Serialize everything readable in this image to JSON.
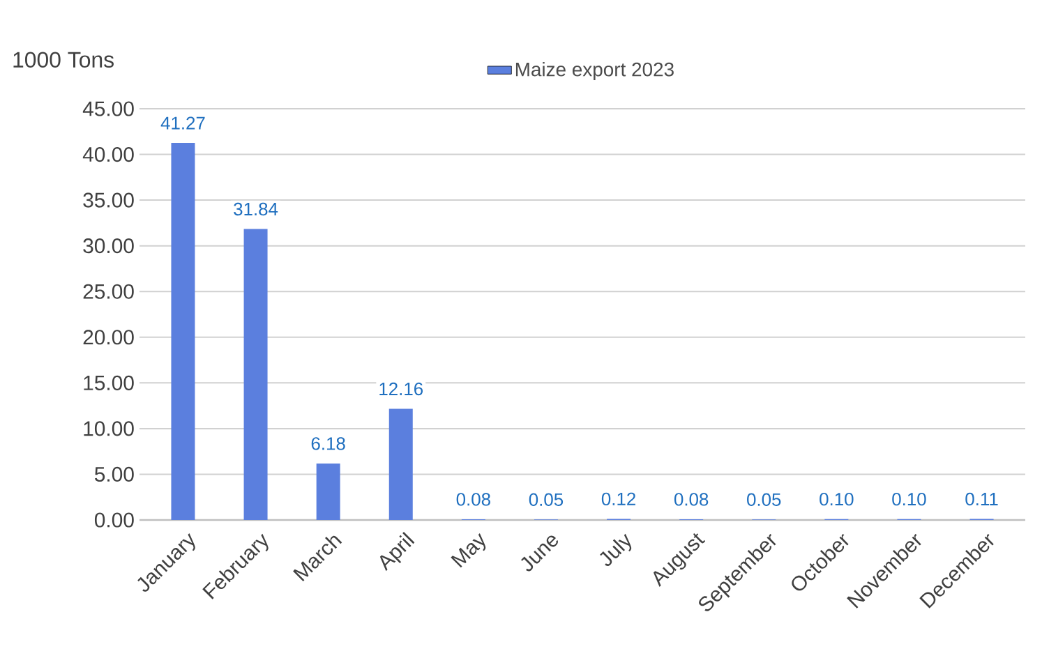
{
  "chart_data": {
    "type": "bar",
    "ylabel": "1000 Tons",
    "categories": [
      "January",
      "February",
      "March",
      "April",
      "May",
      "June",
      "July",
      "August",
      "September",
      "October",
      "November",
      "December"
    ],
    "series": [
      {
        "name": "Maize export 2023",
        "color": "#5b7fde",
        "values": [
          41.27,
          31.84,
          6.18,
          12.16,
          0.08,
          0.05,
          0.12,
          0.08,
          0.05,
          0.1,
          0.1,
          0.11
        ],
        "value_labels": [
          "41.27",
          "31.84",
          "6.18",
          "12.16",
          "0.08",
          "0.05",
          "0.12",
          "0.08",
          "0.05",
          "0.10",
          "0.10",
          "0.11"
        ]
      }
    ],
    "ylim": [
      0,
      45
    ],
    "yticks": [
      {
        "value": 0,
        "label": "0.00"
      },
      {
        "value": 5,
        "label": "5.00"
      },
      {
        "value": 10,
        "label": "10.00"
      },
      {
        "value": 15,
        "label": "15.00"
      },
      {
        "value": 20,
        "label": "20.00"
      },
      {
        "value": 25,
        "label": "25.00"
      },
      {
        "value": 30,
        "label": "30.00"
      },
      {
        "value": 35,
        "label": "35.00"
      },
      {
        "value": 40,
        "label": "40.00"
      },
      {
        "value": 45,
        "label": "45.00"
      }
    ],
    "grid": "y",
    "legend": "top"
  }
}
